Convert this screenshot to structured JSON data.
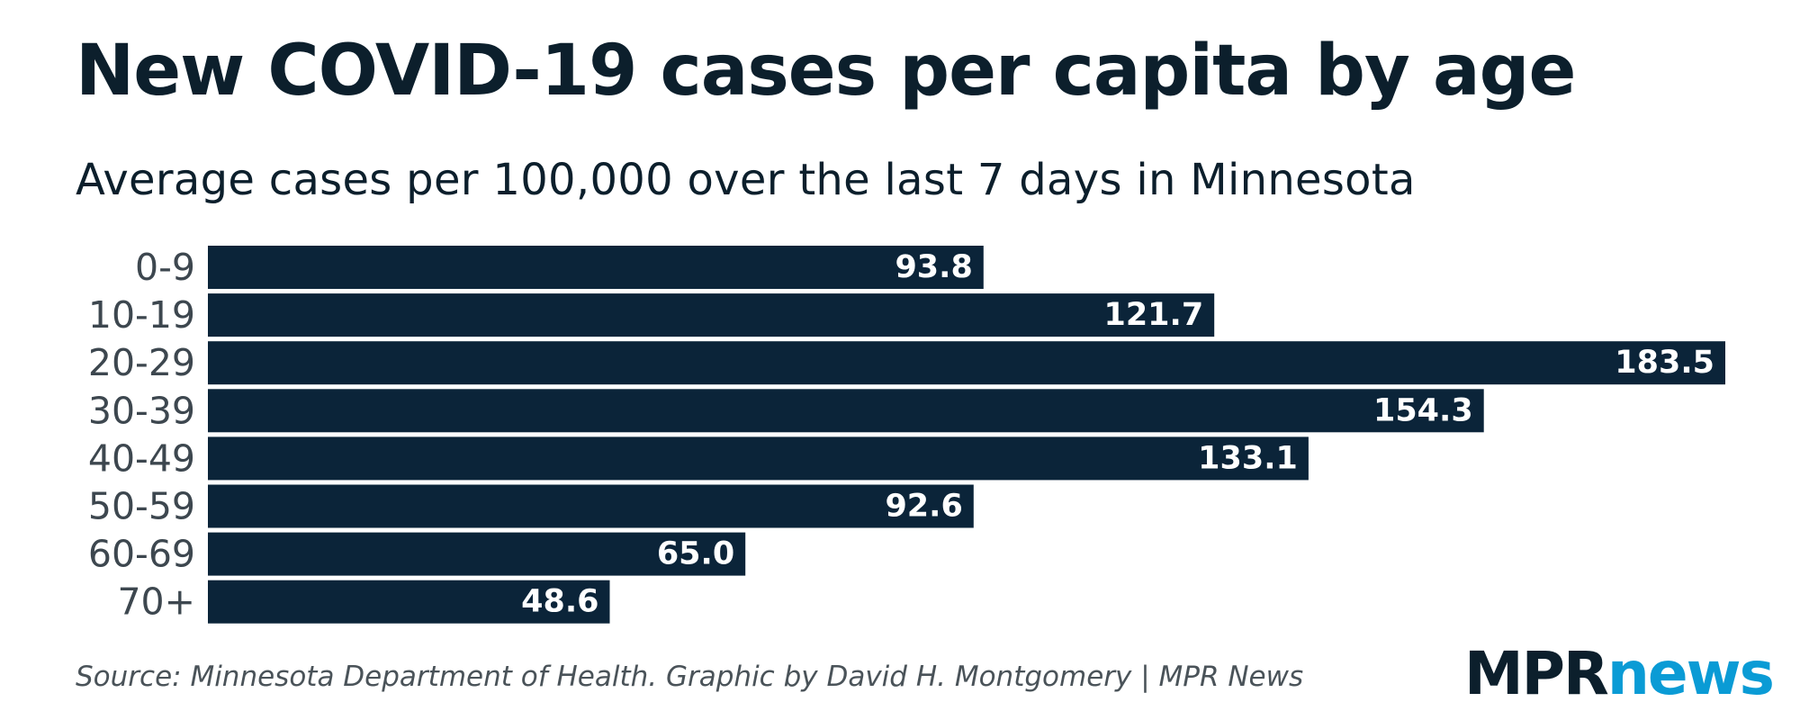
{
  "chart_data": {
    "type": "bar",
    "orientation": "horizontal",
    "title": "New COVID-19 cases per capita by age",
    "subtitle": "Average cases per 100,000 over the last 7 days in Minnesota",
    "categories": [
      "0-9",
      "10-19",
      "20-29",
      "30-39",
      "40-49",
      "50-59",
      "60-69",
      "70+"
    ],
    "values": [
      93.8,
      121.7,
      183.5,
      154.3,
      133.1,
      92.6,
      65.0,
      48.6
    ],
    "value_labels": [
      "93.8",
      "121.7",
      "183.5",
      "154.3",
      "133.1",
      "92.6",
      "65.0",
      "48.6"
    ],
    "xlabel": "",
    "ylabel": "",
    "xlim": [
      0,
      183.5
    ],
    "grid": false,
    "bar_color": "#0b2439",
    "label_color": "#ffffff"
  },
  "footer": {
    "source": "Source: Minnesota Department of Health. Graphic by David H. Montgomery | MPR News"
  },
  "logo": {
    "part1": "MPR",
    "part2": "news",
    "color1": "#0c1f2c",
    "color2": "#0a9bd5"
  }
}
